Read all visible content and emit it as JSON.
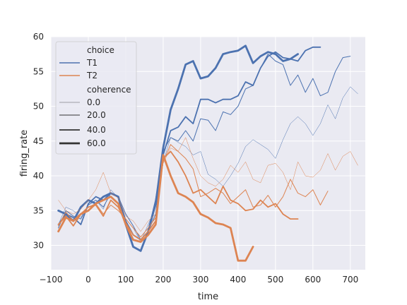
{
  "chart_data": {
    "type": "line",
    "xlabel": "time",
    "ylabel": "firing_rate",
    "xlim": [
      -100,
      740
    ],
    "ylim": [
      26.5,
      60
    ],
    "xticks": [
      -100,
      0,
      100,
      200,
      300,
      400,
      500,
      600,
      700
    ],
    "xtick_labels": [
      "−100",
      "0",
      "100",
      "200",
      "300",
      "400",
      "500",
      "600",
      "700"
    ],
    "yticks": [
      30,
      35,
      40,
      45,
      50,
      55,
      60
    ],
    "ytick_labels": [
      "30",
      "35",
      "40",
      "45",
      "50",
      "55",
      "60"
    ],
    "grid": true,
    "background": "#eaeaf2",
    "legend": {
      "placement": "top-left",
      "hue_title": "choice",
      "hue_entries": [
        {
          "label": "T1",
          "color": "#4c72b0"
        },
        {
          "label": "T2",
          "color": "#dd8452"
        }
      ],
      "size_title": "coherence",
      "size_entries": [
        {
          "label": "0.0",
          "width": 0.5
        },
        {
          "label": "20.0",
          "width": 1.0
        },
        {
          "label": "40.0",
          "width": 1.8
        },
        {
          "label": "60.0",
          "width": 2.8
        }
      ]
    },
    "series": [
      {
        "choice": "T1",
        "coherence": "0.0",
        "color": "#4c72b0",
        "width": 0.5,
        "x": [
          -80,
          -60,
          -40,
          -20,
          0,
          20,
          40,
          60,
          80,
          100,
          120,
          140,
          160,
          180,
          200,
          220,
          240,
          260,
          280,
          300,
          320,
          340,
          360,
          380,
          400,
          420,
          440,
          460,
          480,
          500,
          520,
          540,
          560,
          580,
          600,
          620,
          640,
          660,
          680,
          700,
          720
        ],
        "y": [
          33.0,
          35.5,
          35.0,
          34.0,
          35.8,
          36.5,
          35.2,
          38.0,
          36.8,
          33.8,
          32.5,
          30.5,
          33.0,
          35.5,
          42.0,
          45.5,
          44.8,
          44.2,
          43.0,
          43.5,
          40.2,
          39.5,
          38.5,
          40.0,
          41.8,
          44.2,
          45.2,
          44.5,
          43.8,
          42.5,
          45.2,
          47.5,
          48.5,
          47.5,
          45.8,
          47.5,
          50.2,
          48.2,
          51.2,
          52.8,
          51.8
        ]
      },
      {
        "choice": "T1",
        "coherence": "20.0",
        "color": "#4c72b0",
        "width": 1.0,
        "x": [
          -80,
          -60,
          -40,
          -20,
          0,
          20,
          40,
          60,
          80,
          100,
          120,
          140,
          160,
          180,
          200,
          220,
          240,
          260,
          280,
          300,
          320,
          340,
          360,
          380,
          400,
          420,
          440,
          460,
          480,
          500,
          520,
          540,
          560,
          580,
          600,
          620,
          640,
          660,
          680,
          700
        ],
        "y": [
          32.5,
          35.0,
          34.2,
          33.8,
          35.8,
          36.5,
          35.5,
          37.5,
          37.0,
          34.5,
          32.8,
          30.8,
          32.0,
          34.5,
          43.5,
          45.5,
          45.0,
          46.5,
          45.0,
          48.2,
          48.0,
          46.5,
          49.2,
          48.8,
          50.0,
          52.5,
          53.0,
          55.5,
          57.5,
          56.5,
          56.0,
          53.0,
          54.5,
          52.0,
          54.0,
          51.5,
          52.0,
          55.0,
          57.0,
          57.2
        ]
      },
      {
        "choice": "T1",
        "coherence": "40.0",
        "color": "#4c72b0",
        "width": 1.8,
        "x": [
          -80,
          -60,
          -40,
          -20,
          0,
          20,
          40,
          60,
          80,
          100,
          120,
          140,
          160,
          180,
          200,
          220,
          240,
          260,
          280,
          300,
          320,
          340,
          360,
          380,
          400,
          420,
          440,
          460,
          480,
          500,
          520,
          540,
          560,
          580,
          600,
          620
        ],
        "y": [
          33.0,
          34.5,
          34.0,
          33.0,
          36.0,
          37.0,
          36.5,
          37.5,
          37.0,
          33.5,
          31.5,
          30.8,
          32.0,
          36.5,
          43.0,
          46.5,
          47.0,
          48.5,
          47.5,
          51.0,
          51.0,
          50.5,
          51.0,
          51.0,
          51.5,
          53.5,
          53.0,
          55.5,
          57.2,
          57.8,
          57.0,
          56.8,
          56.5,
          58.0,
          58.5,
          58.5
        ]
      },
      {
        "choice": "T1",
        "coherence": "60.0",
        "color": "#4c72b0",
        "width": 2.8,
        "x": [
          -80,
          -60,
          -40,
          -20,
          0,
          20,
          40,
          60,
          80,
          100,
          120,
          140,
          160,
          180,
          200,
          220,
          240,
          260,
          280,
          300,
          320,
          340,
          360,
          380,
          400,
          420,
          440,
          460,
          480,
          500,
          520,
          540,
          560
        ],
        "y": [
          35.0,
          34.5,
          33.5,
          35.5,
          36.5,
          36.0,
          37.0,
          37.5,
          37.0,
          33.0,
          29.8,
          29.2,
          32.0,
          36.0,
          44.0,
          49.5,
          52.5,
          56.0,
          56.5,
          54.0,
          54.3,
          55.5,
          57.5,
          57.8,
          58.0,
          58.7,
          56.2,
          57.2,
          57.8,
          57.5,
          56.5,
          56.8,
          57.5
        ]
      },
      {
        "choice": "T2",
        "coherence": "0.0",
        "color": "#dd8452",
        "width": 0.5,
        "x": [
          -80,
          -60,
          -40,
          -20,
          0,
          20,
          40,
          60,
          80,
          100,
          120,
          140,
          160,
          180,
          200,
          220,
          240,
          260,
          280,
          300,
          320,
          340,
          360,
          380,
          400,
          420,
          440,
          460,
          480,
          500,
          520,
          540,
          560,
          580,
          600,
          620,
          640,
          660,
          680,
          700,
          720
        ],
        "y": [
          36.5,
          35.0,
          34.5,
          35.2,
          36.5,
          38.0,
          40.5,
          37.5,
          36.8,
          34.2,
          33.5,
          32.0,
          33.5,
          34.5,
          41.8,
          44.0,
          43.5,
          45.5,
          42.5,
          40.0,
          39.0,
          38.5,
          39.5,
          41.5,
          40.5,
          42.0,
          39.5,
          39.0,
          41.5,
          41.8,
          40.5,
          38.0,
          42.0,
          40.0,
          39.8,
          40.8,
          43.2,
          40.8,
          42.8,
          43.5,
          41.5
        ]
      },
      {
        "choice": "T2",
        "coherence": "20.0",
        "color": "#dd8452",
        "width": 1.0,
        "x": [
          -80,
          -60,
          -40,
          -20,
          0,
          20,
          40,
          60,
          80,
          100,
          120,
          140,
          160,
          180,
          200,
          220,
          240,
          260,
          280,
          300,
          320,
          340,
          360,
          380,
          400,
          420,
          440,
          460,
          480,
          500,
          520,
          540,
          560,
          580,
          600,
          620,
          640
        ],
        "y": [
          32.8,
          34.8,
          33.5,
          34.5,
          35.5,
          36.0,
          34.5,
          35.8,
          35.0,
          33.8,
          32.5,
          31.2,
          32.5,
          34.0,
          42.0,
          44.5,
          43.5,
          42.5,
          41.0,
          37.0,
          37.5,
          38.2,
          37.5,
          36.0,
          37.0,
          38.0,
          35.5,
          35.8,
          37.2,
          35.5,
          37.0,
          39.5,
          37.5,
          37.0,
          38.0,
          35.8,
          37.8
        ]
      },
      {
        "choice": "T2",
        "coherence": "40.0",
        "color": "#dd8452",
        "width": 1.8,
        "x": [
          -80,
          -60,
          -40,
          -20,
          0,
          20,
          40,
          60,
          80,
          100,
          120,
          140,
          160,
          180,
          200,
          220,
          240,
          260,
          280,
          300,
          320,
          340,
          360,
          380,
          400,
          420,
          440,
          460,
          480,
          500,
          520,
          540,
          560
        ],
        "y": [
          33.0,
          34.2,
          32.8,
          34.5,
          35.5,
          35.8,
          34.2,
          36.5,
          35.5,
          33.2,
          31.5,
          30.8,
          32.0,
          33.5,
          42.5,
          43.5,
          42.0,
          40.0,
          37.5,
          38.0,
          37.0,
          36.0,
          38.5,
          36.5,
          36.0,
          35.0,
          35.2,
          36.5,
          35.5,
          36.0,
          34.5,
          33.8,
          33.8
        ]
      },
      {
        "choice": "T2",
        "coherence": "60.0",
        "color": "#dd8452",
        "width": 2.8,
        "x": [
          -80,
          -60,
          -40,
          -20,
          0,
          20,
          40,
          60,
          80,
          100,
          120,
          140,
          160,
          180,
          200,
          220,
          240,
          260,
          280,
          300,
          320,
          340,
          360,
          380,
          400,
          420,
          440
        ],
        "y": [
          32.0,
          34.0,
          33.5,
          34.5,
          35.0,
          36.0,
          36.5,
          37.0,
          36.0,
          33.0,
          30.8,
          30.5,
          31.5,
          33.0,
          43.0,
          40.0,
          37.5,
          37.0,
          36.2,
          34.5,
          34.0,
          33.2,
          33.0,
          32.5,
          27.8,
          27.8,
          29.8
        ]
      }
    ]
  }
}
